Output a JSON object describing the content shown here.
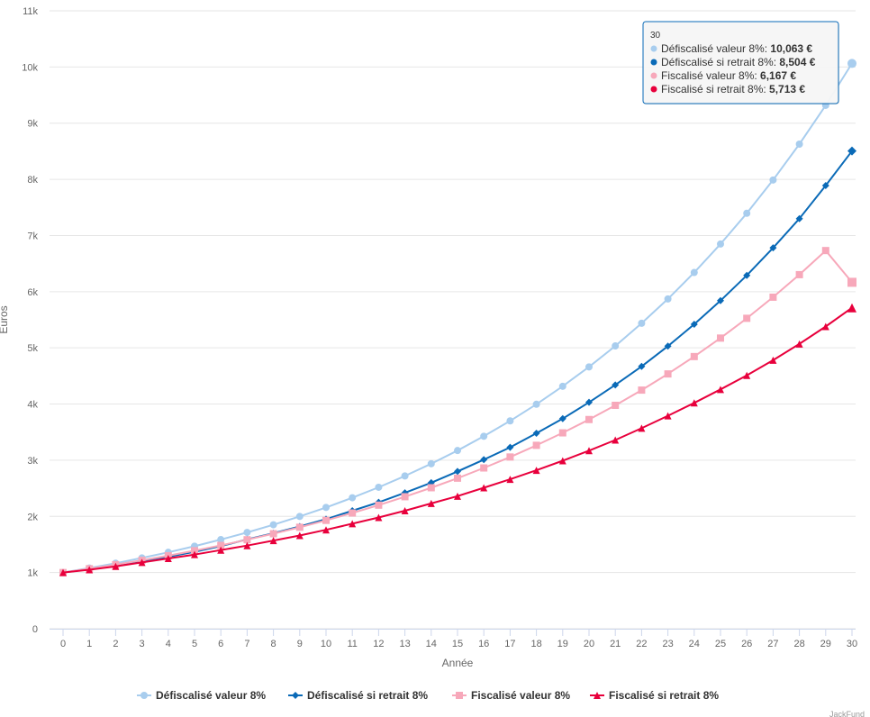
{
  "chart_data": {
    "type": "line",
    "xlabel": "Année",
    "ylabel": "Euros",
    "ylim": [
      0,
      11000
    ],
    "yticks": [
      0,
      1000,
      2000,
      3000,
      4000,
      5000,
      6000,
      7000,
      8000,
      9000,
      10000,
      11000
    ],
    "ytick_labels": [
      "0",
      "1k",
      "2k",
      "3k",
      "4k",
      "5k",
      "6k",
      "7k",
      "8k",
      "9k",
      "10k",
      "11k"
    ],
    "x": [
      0,
      1,
      2,
      3,
      4,
      5,
      6,
      7,
      8,
      9,
      10,
      11,
      12,
      13,
      14,
      15,
      16,
      17,
      18,
      19,
      20,
      21,
      22,
      23,
      24,
      25,
      26,
      27,
      28,
      29,
      30
    ],
    "grid": "horizontal",
    "legend_position": "bottom",
    "series": [
      {
        "name": "Défiscalisé valeur 8%",
        "color": "#a8cdee",
        "marker": "circle",
        "values": [
          1000,
          1080,
          1166,
          1260,
          1360,
          1469,
          1587,
          1714,
          1851,
          1999,
          2159,
          2332,
          2518,
          2720,
          2937,
          3172,
          3426,
          3700,
          3996,
          4316,
          4661,
          5034,
          5437,
          5871,
          6341,
          6848,
          7396,
          7988,
          8627,
          9317,
          10063
        ]
      },
      {
        "name": "Défiscalisé si retrait 8%",
        "color": "#0a6ab7",
        "marker": "diamond",
        "values": [
          1000,
          1060,
          1130,
          1210,
          1280,
          1370,
          1470,
          1590,
          1700,
          1820,
          1950,
          2100,
          2250,
          2420,
          2600,
          2800,
          3010,
          3230,
          3480,
          3740,
          4030,
          4340,
          4670,
          5030,
          5420,
          5840,
          6290,
          6780,
          7300,
          7890,
          8504
        ]
      },
      {
        "name": "Fiscalisé valeur 8%",
        "color": "#f7a8ba",
        "marker": "square",
        "values": [
          1000,
          1068,
          1140,
          1218,
          1300,
          1389,
          1483,
          1584,
          1691,
          1806,
          1929,
          2060,
          2200,
          2350,
          2510,
          2680,
          2862,
          3057,
          3265,
          3487,
          3724,
          3977,
          4248,
          4536,
          4845,
          5174,
          5526,
          5902,
          6303,
          6732,
          6167
        ]
      },
      {
        "name": "Fiscalisé si retrait 8%",
        "color": "#e8003c",
        "marker": "triangle",
        "values": [
          1000,
          1050,
          1110,
          1180,
          1250,
          1320,
          1400,
          1480,
          1570,
          1660,
          1760,
          1870,
          1980,
          2100,
          2230,
          2360,
          2510,
          2660,
          2820,
          2990,
          3170,
          3360,
          3570,
          3790,
          4020,
          4260,
          4510,
          4780,
          5070,
          5380,
          5713
        ]
      }
    ],
    "tooltip": {
      "header": "30",
      "rows": [
        {
          "label": "Défiscalisé valeur 8%: ",
          "value": "10,063 €",
          "color": "#a8cdee"
        },
        {
          "label": "Défiscalisé si retrait 8%: ",
          "value": "8,504 €",
          "color": "#0a6ab7"
        },
        {
          "label": "Fiscalisé valeur 8%: ",
          "value": "6,167 €",
          "color": "#f7a8ba"
        },
        {
          "label": "Fiscalisé si retrait 8%: ",
          "value": "5,713 €",
          "color": "#e8003c"
        }
      ]
    },
    "credit": "JackFund"
  }
}
